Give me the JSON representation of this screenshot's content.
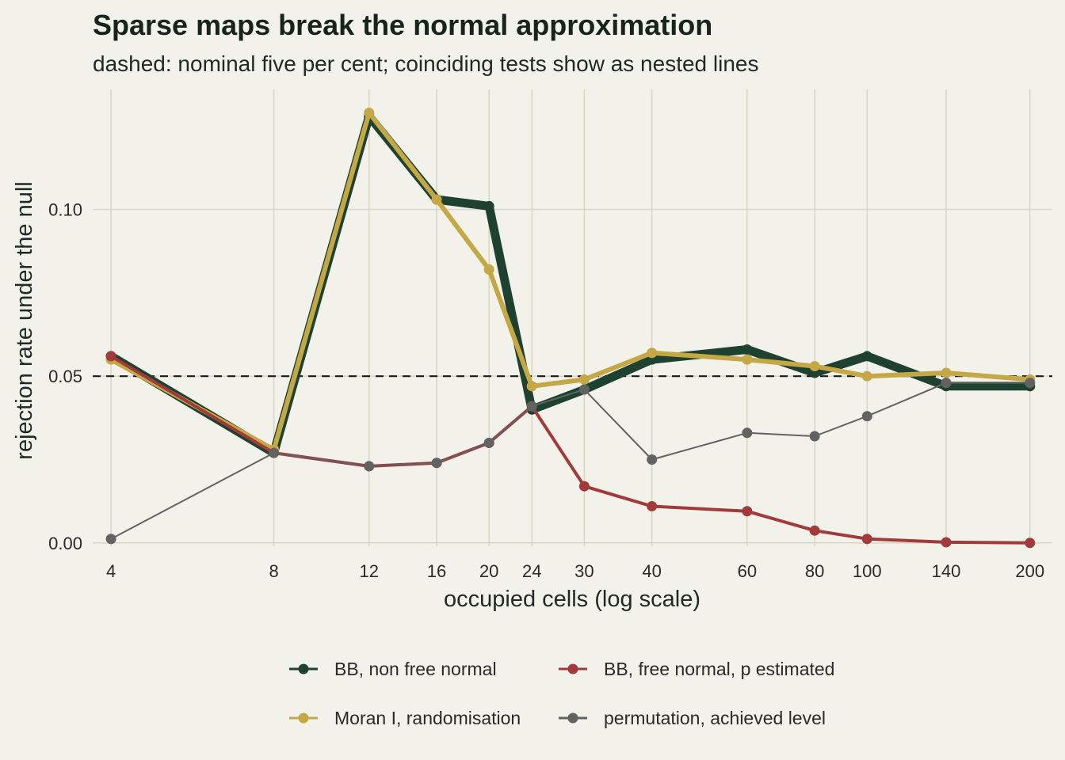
{
  "chart_data": {
    "type": "line",
    "title": "Sparse maps break the normal approximation",
    "subtitle": "dashed: nominal five per cent; coinciding tests show as nested lines",
    "xlabel": "occupied cells (log scale)",
    "ylabel": "rejection rate under the null",
    "x_scale": "log",
    "x": [
      4,
      8,
      12,
      16,
      20,
      24,
      30,
      40,
      60,
      80,
      100,
      140,
      200
    ],
    "x_tick_labels": [
      "4",
      "8",
      "12",
      "16",
      "20",
      "24",
      "30",
      "40",
      "60",
      "80",
      "100",
      "140",
      "200"
    ],
    "y_ticks": [
      0.0,
      0.05,
      0.1
    ],
    "y_tick_labels": [
      "0.00",
      "0.05",
      "0.10"
    ],
    "ylim": [
      -0.001,
      0.136
    ],
    "xlim": [
      3.7,
      220
    ],
    "reference_line": {
      "y": 0.05,
      "style": "dashed"
    },
    "grid": true,
    "legend_position": "bottom",
    "series": [
      {
        "name": "BB, non free normal",
        "color": "#1f4230",
        "values": [
          0.056,
          0.027,
          0.128,
          0.103,
          0.101,
          0.04,
          0.046,
          0.055,
          0.058,
          0.051,
          0.056,
          0.047,
          0.047
        ]
      },
      {
        "name": "BB, free normal, p estimated",
        "color": "#a23a3a",
        "values": [
          0.056,
          0.027,
          0.023,
          0.024,
          0.03,
          0.041,
          0.017,
          0.011,
          0.0095,
          0.0037,
          0.0012,
          0.0002,
          0.0
        ]
      },
      {
        "name": "Moran I, randomisation",
        "color": "#c4a846",
        "values": [
          0.055,
          0.028,
          0.129,
          0.103,
          0.082,
          0.047,
          0.049,
          0.057,
          0.055,
          0.053,
          0.05,
          0.051,
          0.049
        ]
      },
      {
        "name": "permutation, achieved level",
        "color": "#626262",
        "values": [
          0.0012,
          0.027,
          0.023,
          0.024,
          0.03,
          0.041,
          0.046,
          0.025,
          0.033,
          0.032,
          0.038,
          0.048,
          0.048
        ]
      }
    ]
  }
}
